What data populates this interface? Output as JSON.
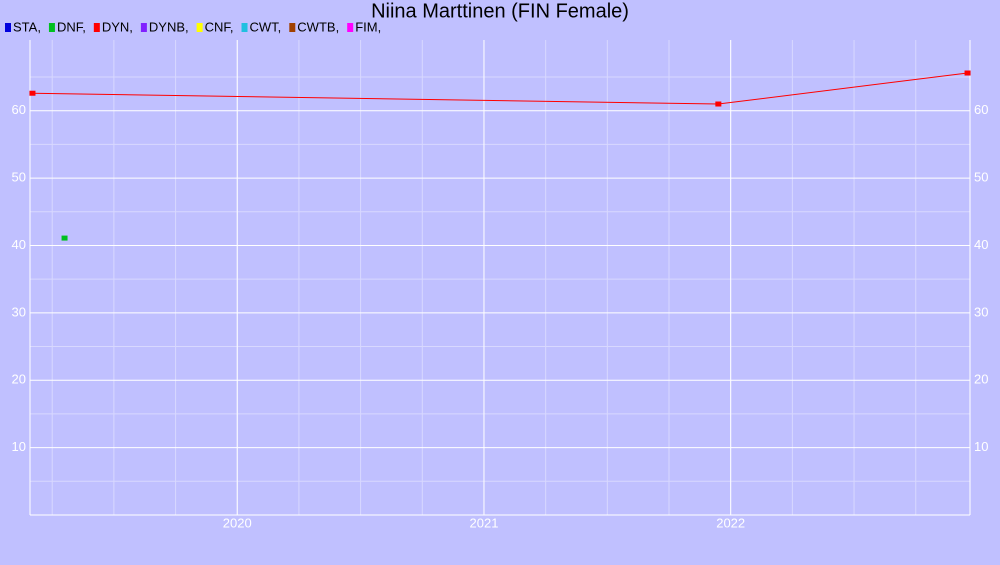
{
  "chart_data": {
    "type": "line",
    "title": "Niina Marttinen (FIN Female)",
    "series": [
      {
        "name": "STA,",
        "color": "#0000dd",
        "x": [],
        "values": []
      },
      {
        "name": "DNF,",
        "color": "#00c020",
        "x": [
          2019.3
        ],
        "values": [
          41.1
        ]
      },
      {
        "name": "DYN,",
        "color": "#ff0000",
        "x": [
          2019.17,
          2021.95,
          2022.96
        ],
        "values": [
          62.6,
          61.0,
          65.6
        ]
      },
      {
        "name": "DYNB,",
        "color": "#8020ff",
        "x": [],
        "values": []
      },
      {
        "name": "CNF,",
        "color": "#ffff00",
        "x": [],
        "values": []
      },
      {
        "name": "CWT,",
        "color": "#20c0e0",
        "x": [],
        "values": []
      },
      {
        "name": "CWTB,",
        "color": "#a04000",
        "x": [],
        "values": []
      },
      {
        "name": "FIM,",
        "color": "#ff00ff",
        "x": [],
        "values": []
      }
    ],
    "xlim": [
      2019.16,
      2022.97
    ],
    "xticks": [
      2020,
      2021,
      2022
    ],
    "ylim": [
      0,
      70.5
    ],
    "yticks": [
      10,
      20,
      30,
      40,
      50,
      60
    ],
    "grid": true
  }
}
